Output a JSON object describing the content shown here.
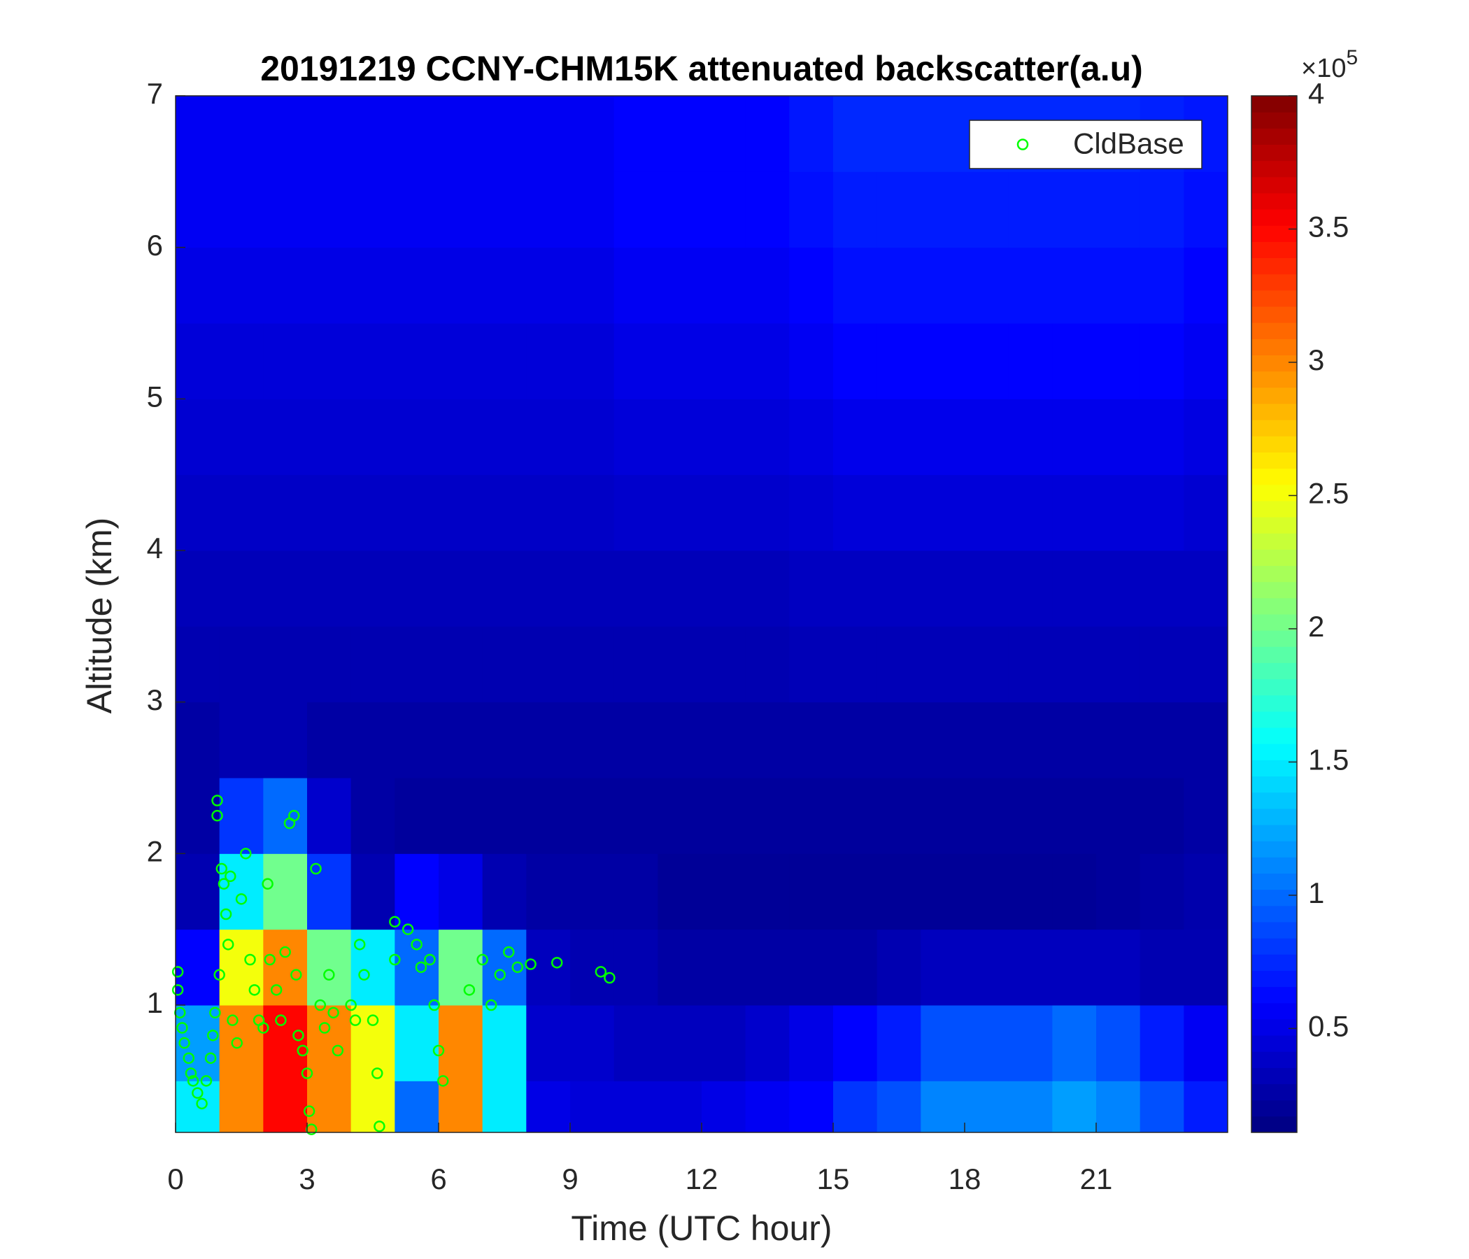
{
  "chart_data": {
    "type": "heatmap",
    "title": "20191219 CCNY-CHM15K attenuated backscatter(a.u)",
    "xlabel": "Time (UTC hour)",
    "ylabel": "Altitude (km)",
    "xlim": [
      0,
      24
    ],
    "ylim": [
      0.16,
      7
    ],
    "xticks": [
      0,
      3,
      6,
      9,
      12,
      15,
      18,
      21
    ],
    "yticks": [
      1,
      2,
      3,
      4,
      5,
      6,
      7
    ],
    "x_edges": [
      0,
      1,
      2,
      3,
      4,
      5,
      6,
      7,
      8,
      9,
      10,
      11,
      12,
      13,
      14,
      15,
      16,
      17,
      18,
      19,
      20,
      21,
      22,
      23,
      24
    ],
    "y_edges": [
      0.16,
      0.5,
      1,
      1.5,
      2,
      2.5,
      3,
      3.5,
      4,
      4.5,
      5,
      5.5,
      6,
      6.5,
      7
    ],
    "z": [
      [
        1.5,
        3.0,
        3.5,
        3.0,
        2.5,
        1.0,
        3.0,
        1.5,
        0.5,
        0.45,
        0.45,
        0.45,
        0.5,
        0.55,
        0.6,
        0.8,
        0.9,
        1.1,
        1.1,
        1.1,
        1.2,
        1.1,
        0.9,
        0.7
      ],
      [
        1.2,
        3.0,
        3.5,
        3.0,
        2.5,
        1.5,
        3.0,
        1.5,
        0.4,
        0.4,
        0.35,
        0.35,
        0.35,
        0.4,
        0.5,
        0.6,
        0.7,
        0.9,
        0.9,
        0.9,
        1.0,
        0.9,
        0.7,
        0.55
      ],
      [
        0.6,
        2.5,
        3.0,
        2.0,
        1.5,
        1.0,
        2.0,
        1.0,
        0.35,
        0.3,
        0.3,
        0.25,
        0.25,
        0.25,
        0.25,
        0.25,
        0.3,
        0.35,
        0.35,
        0.35,
        0.35,
        0.35,
        0.3,
        0.3
      ],
      [
        0.3,
        1.5,
        2.0,
        0.8,
        0.3,
        0.6,
        0.5,
        0.3,
        0.25,
        0.25,
        0.25,
        0.2,
        0.2,
        0.2,
        0.2,
        0.2,
        0.2,
        0.2,
        0.2,
        0.2,
        0.2,
        0.22,
        0.25,
        0.28
      ],
      [
        0.25,
        0.8,
        1.0,
        0.4,
        0.25,
        0.22,
        0.22,
        0.22,
        0.22,
        0.22,
        0.22,
        0.22,
        0.22,
        0.22,
        0.22,
        0.22,
        0.22,
        0.22,
        0.22,
        0.22,
        0.22,
        0.22,
        0.22,
        0.25
      ],
      [
        0.25,
        0.3,
        0.3,
        0.25,
        0.25,
        0.25,
        0.25,
        0.25,
        0.25,
        0.25,
        0.25,
        0.25,
        0.25,
        0.25,
        0.25,
        0.25,
        0.25,
        0.25,
        0.25,
        0.25,
        0.25,
        0.25,
        0.25,
        0.25
      ],
      [
        0.3,
        0.3,
        0.3,
        0.3,
        0.3,
        0.3,
        0.3,
        0.3,
        0.3,
        0.3,
        0.3,
        0.3,
        0.3,
        0.3,
        0.32,
        0.32,
        0.32,
        0.32,
        0.32,
        0.32,
        0.32,
        0.32,
        0.32,
        0.32
      ],
      [
        0.33,
        0.33,
        0.33,
        0.33,
        0.33,
        0.33,
        0.33,
        0.33,
        0.33,
        0.33,
        0.33,
        0.33,
        0.33,
        0.33,
        0.36,
        0.36,
        0.36,
        0.36,
        0.36,
        0.36,
        0.36,
        0.36,
        0.36,
        0.36
      ],
      [
        0.38,
        0.38,
        0.38,
        0.38,
        0.38,
        0.38,
        0.38,
        0.38,
        0.38,
        0.38,
        0.4,
        0.4,
        0.4,
        0.4,
        0.42,
        0.45,
        0.45,
        0.45,
        0.45,
        0.45,
        0.45,
        0.45,
        0.45,
        0.42
      ],
      [
        0.42,
        0.42,
        0.42,
        0.42,
        0.42,
        0.42,
        0.42,
        0.42,
        0.42,
        0.42,
        0.45,
        0.45,
        0.45,
        0.45,
        0.48,
        0.52,
        0.52,
        0.52,
        0.52,
        0.52,
        0.52,
        0.52,
        0.52,
        0.48
      ],
      [
        0.45,
        0.45,
        0.45,
        0.45,
        0.45,
        0.45,
        0.45,
        0.45,
        0.45,
        0.45,
        0.5,
        0.5,
        0.5,
        0.5,
        0.55,
        0.6,
        0.6,
        0.6,
        0.6,
        0.6,
        0.6,
        0.6,
        0.6,
        0.55
      ],
      [
        0.5,
        0.5,
        0.5,
        0.5,
        0.5,
        0.5,
        0.5,
        0.5,
        0.5,
        0.5,
        0.55,
        0.55,
        0.55,
        0.55,
        0.6,
        0.65,
        0.65,
        0.65,
        0.65,
        0.65,
        0.65,
        0.65,
        0.65,
        0.6
      ],
      [
        0.55,
        0.55,
        0.55,
        0.55,
        0.55,
        0.55,
        0.55,
        0.55,
        0.55,
        0.55,
        0.6,
        0.6,
        0.6,
        0.6,
        0.65,
        0.7,
        0.7,
        0.7,
        0.7,
        0.7,
        0.7,
        0.7,
        0.7,
        0.65
      ],
      [
        0.55,
        0.55,
        0.55,
        0.55,
        0.55,
        0.55,
        0.55,
        0.55,
        0.55,
        0.55,
        0.6,
        0.6,
        0.6,
        0.6,
        0.68,
        0.75,
        0.75,
        0.75,
        0.75,
        0.75,
        0.75,
        0.75,
        0.72,
        0.68
      ]
    ],
    "colormap": "jet",
    "clim": [
      0.11,
      4
    ],
    "cticks": [
      0.5,
      1,
      {
        "value": 1.5,
        "label": "1.5"
      },
      2,
      {
        "value": 2.5,
        "label": "2.5"
      },
      3,
      {
        "value": 3.5,
        "label": "3.5"
      },
      4
    ],
    "colorbar_scale": {
      "base": "×10",
      "exponent": "5"
    },
    "legend": "upper right",
    "series": [
      {
        "name": "CldBase",
        "type": "scatter",
        "color": "#00ff00",
        "x": [
          0.05,
          0.05,
          0.1,
          0.15,
          0.2,
          0.3,
          0.35,
          0.4,
          0.5,
          0.6,
          0.7,
          0.8,
          0.85,
          0.9,
          0.95,
          0.95,
          1.0,
          1.05,
          1.1,
          1.15,
          1.2,
          1.25,
          1.3,
          1.4,
          1.5,
          1.6,
          1.7,
          1.8,
          1.9,
          2.0,
          2.1,
          2.15,
          2.3,
          2.4,
          2.5,
          2.6,
          2.7,
          2.75,
          2.8,
          2.9,
          3.0,
          3.05,
          3.1,
          3.2,
          3.3,
          3.4,
          3.5,
          3.6,
          3.7,
          4.0,
          4.1,
          4.2,
          4.3,
          4.5,
          4.6,
          4.65,
          5.0,
          5.0,
          5.3,
          5.5,
          5.6,
          5.8,
          5.9,
          6.0,
          6.1,
          6.7,
          7.0,
          7.2,
          7.4,
          7.6,
          7.8,
          8.1,
          8.7,
          9.7,
          9.9
        ],
        "y": [
          1.22,
          1.1,
          0.95,
          0.85,
          0.75,
          0.65,
          0.55,
          0.5,
          0.42,
          0.35,
          0.5,
          0.65,
          0.8,
          0.95,
          2.35,
          2.25,
          1.2,
          1.9,
          1.8,
          1.6,
          1.4,
          1.85,
          0.9,
          0.75,
          1.7,
          2.0,
          1.3,
          1.1,
          0.9,
          0.85,
          1.8,
          1.3,
          1.1,
          0.9,
          1.35,
          2.2,
          2.25,
          1.2,
          0.8,
          0.7,
          0.55,
          0.3,
          0.18,
          1.9,
          1.0,
          0.85,
          1.2,
          0.95,
          0.7,
          1.0,
          0.9,
          1.4,
          1.2,
          0.9,
          0.55,
          0.2,
          1.55,
          1.3,
          1.5,
          1.4,
          1.25,
          1.3,
          1.0,
          0.7,
          0.5,
          1.1,
          1.3,
          1.0,
          1.2,
          1.35,
          1.25,
          1.27,
          1.28,
          1.22,
          1.18
        ]
      }
    ]
  }
}
